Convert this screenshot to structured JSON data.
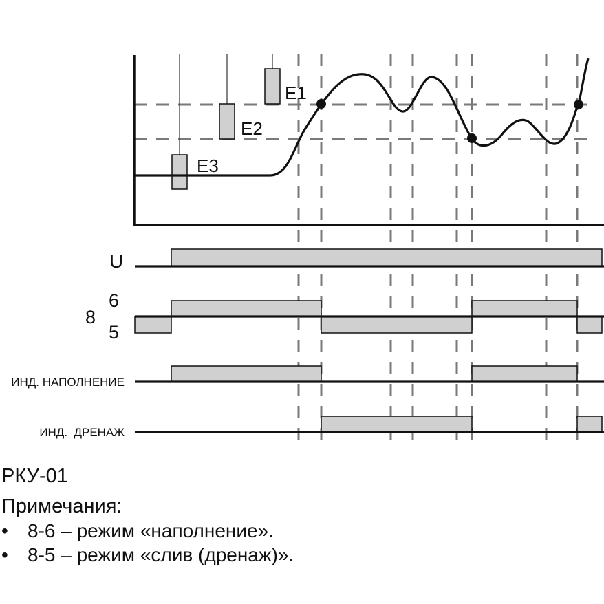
{
  "diagram": {
    "electrodes": [
      {
        "label": "E1"
      },
      {
        "label": "E2"
      },
      {
        "label": "E3"
      }
    ],
    "signals": [
      {
        "label": "U"
      },
      {
        "label_top": "6",
        "label_left": "8",
        "label_bottom": "5"
      },
      {
        "label": "ИНД. НАПОЛНЕНИЕ"
      },
      {
        "label": "ИНД.  ДРЕНАЖ"
      }
    ],
    "colors": {
      "line": "#111111",
      "fill": "#d0d0d0",
      "dash": "#7a7a7a"
    }
  },
  "notes": {
    "model": "РКУ-01",
    "title": "Примечания:",
    "items": [
      {
        "bullet": "•",
        "text": "8-6 – режим «наполнение»."
      },
      {
        "bullet": "•",
        "text": "8-5 – режим «слив (дренаж)»."
      }
    ]
  }
}
